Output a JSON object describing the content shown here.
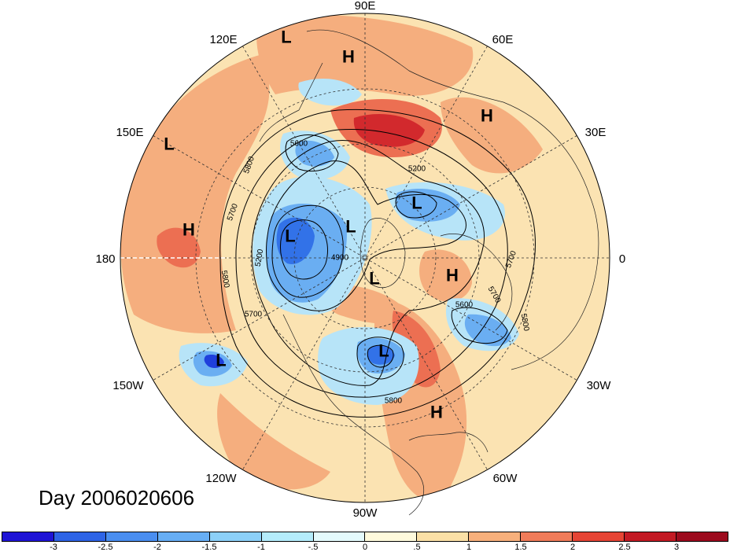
{
  "title": "Day 2006020606",
  "longitude_labels": {
    "lon_90E": "90E",
    "lon_60E": "60E",
    "lon_30E": "30E",
    "lon_0": "0",
    "lon_30W": "30W",
    "lon_60W": "60W",
    "lon_90W": "90W",
    "lon_120W": "120W",
    "lon_150W": "150W",
    "lon_180": "180",
    "lon_150E": "150E",
    "lon_120E": "120E"
  },
  "pressure_centers": [
    {
      "id": "c1",
      "text": "L"
    },
    {
      "id": "c2",
      "text": "H"
    },
    {
      "id": "c3",
      "text": "H"
    },
    {
      "id": "c4",
      "text": "L"
    },
    {
      "id": "c5",
      "text": "H"
    },
    {
      "id": "c6",
      "text": "L"
    },
    {
      "id": "c7",
      "text": "L"
    },
    {
      "id": "c8",
      "text": "L"
    },
    {
      "id": "c9",
      "text": "H"
    },
    {
      "id": "c10",
      "text": "L"
    },
    {
      "id": "c11",
      "text": "L"
    },
    {
      "id": "c12",
      "text": "L"
    },
    {
      "id": "c13",
      "text": "H"
    }
  ],
  "contour_labels": {
    "c5600a": "5600",
    "c5800a": "5800",
    "c5700a": "5700",
    "c5200a": "5200",
    "c4900": "4900",
    "c5800b": "5800",
    "c5700b": "5700",
    "c5200b": "5200",
    "c5700c": "5700",
    "c5700d": "5700",
    "c5600b": "5600",
    "c5800c": "5800",
    "c5800d": "5800"
  },
  "colorbar": {
    "ticks": [
      "-3",
      "-2.5",
      "-2",
      "-1.5",
      "-1",
      "-.5",
      "0",
      ".5",
      "1",
      "1.5",
      "2",
      "2.5",
      "3"
    ],
    "colors": [
      "#1f14d6",
      "#2e64e6",
      "#4a8ef0",
      "#67aef5",
      "#8cd0f8",
      "#b4ecfb",
      "#e4fafc",
      "#fffadc",
      "#fbe0a6",
      "#f7b07c",
      "#f07c5a",
      "#e64535",
      "#c31a24",
      "#9c0b1d"
    ]
  },
  "fill_colors": {
    "warm_weak": "#fbe3b2",
    "warm": "#f5ae7e",
    "warm_strong": "#ec6f52",
    "hot": "#d2292d",
    "cold_weak": "#b7e4f8",
    "cold": "#6aaef2",
    "cold_strong": "#3272e8",
    "coldest": "#1f3fdc"
  }
}
